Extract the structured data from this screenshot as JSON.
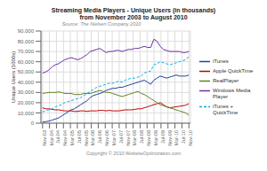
{
  "chart_data": {
    "type": "line",
    "title": "Streaming Media Players - Unique Users (in thousands)",
    "subtitle": "from November 2003 to August 2010",
    "annotations": [
      "Source: The Nielsen Company 2010",
      "Copyright © 2010 WebsiteOptimization.com"
    ],
    "y_label": "Unique Users (1000s)",
    "x": [
      0,
      1,
      2,
      3,
      4,
      5,
      6,
      7,
      8,
      9,
      10,
      11,
      12,
      13,
      14,
      15,
      16,
      17,
      18,
      19,
      20,
      21,
      22,
      23,
      24,
      25,
      26,
      27,
      28,
      29,
      30,
      31,
      32,
      33,
      34,
      35,
      36,
      37,
      38,
      39,
      40,
      41,
      42,
      43,
      44,
      45,
      46
    ],
    "xlim": [
      -0.5,
      46.5
    ],
    "xticks": [
      {
        "value": 0,
        "label": "Nov-03"
      },
      {
        "value": 2.1904761904761907,
        "label": "Mar-04"
      },
      {
        "value": 4.380952380952381,
        "label": "Jul-04"
      },
      {
        "value": 6.571428571428571,
        "label": "Nov-04"
      },
      {
        "value": 8.761904761904763,
        "label": "Mar-05"
      },
      {
        "value": 10.952380952380953,
        "label": "Jul-05"
      },
      {
        "value": 13.142857142857142,
        "label": "Nov-05"
      },
      {
        "value": 15.333333333333334,
        "label": "Mar-06"
      },
      {
        "value": 17.523809523809526,
        "label": "Jul-06"
      },
      {
        "value": 19.714285714285715,
        "label": "Nov-06"
      },
      {
        "value": 21.904761904761905,
        "label": "Mar-07"
      },
      {
        "value": 24.095238095238095,
        "label": "Jul-07"
      },
      {
        "value": 26.285714285714285,
        "label": "Nov-07"
      },
      {
        "value": 28.476190476190474,
        "label": "Mar-08"
      },
      {
        "value": 30.666666666666668,
        "label": "Jul-08"
      },
      {
        "value": 32.857142857142854,
        "label": "Nov-08"
      },
      {
        "value": 35.04761904761905,
        "label": "Mar-09"
      },
      {
        "value": 37.23809523809524,
        "label": "Jul-09"
      },
      {
        "value": 39.42857142857143,
        "label": "Nov-09"
      },
      {
        "value": 41.61904761904762,
        "label": "Mar-10"
      },
      {
        "value": 43.80952380952381,
        "label": "Jul-10"
      },
      {
        "value": 46,
        "label": "Nov-10"
      }
    ],
    "ylim": [
      0,
      90000
    ],
    "yticks": [
      0,
      {
        "value": 10000,
        "label": "10,000"
      },
      {
        "value": 20000,
        "label": "20,000"
      },
      {
        "value": 30000,
        "label": "30,000"
      },
      {
        "value": 40000,
        "label": "40,000"
      },
      {
        "value": 50000,
        "label": "50,000"
      },
      {
        "value": 60000,
        "label": "60,000"
      },
      {
        "value": 70000,
        "label": "70,000"
      },
      {
        "value": 80000,
        "label": "80,000"
      },
      {
        "value": 90000,
        "label": "90,000"
      }
    ],
    "grid": true,
    "legend": "right",
    "series": [
      {
        "name": "iTunes",
        "color": "#2040a0",
        "line_style": "solid",
        "values": [
          1000,
          1500,
          2000,
          3000,
          4000,
          5000,
          7000,
          9000,
          11000,
          13000,
          14000,
          16000,
          18000,
          20000,
          22000,
          25000,
          27000,
          28000,
          29000,
          30000,
          32000,
          33000,
          34000,
          34000,
          35000,
          35000,
          36000,
          37000,
          38000,
          39000,
          40000,
          41000,
          42000,
          40000,
          38000,
          42000,
          44000,
          46000,
          45000,
          44000,
          45000,
          46000,
          47000,
          46000,
          46000,
          46000,
          47000
        ]
      },
      {
        "name": "Apple QuickTime",
        "color": "#c00000",
        "line_style": "solid",
        "values": [
          15000,
          14000,
          14000,
          13500,
          13000,
          13000,
          12500,
          12000,
          12000,
          12000,
          11500,
          11500,
          12000,
          12000,
          11500,
          12000,
          12000,
          12000,
          12500,
          12500,
          12000,
          12500,
          12000,
          12000,
          12000,
          12500,
          13000,
          13000,
          13000,
          13500,
          14000,
          14000,
          15000,
          16000,
          17000,
          18000,
          19000,
          20000,
          18000,
          16000,
          15000,
          15500,
          16000,
          16500,
          17000,
          17500,
          19000
        ]
      },
      {
        "name": "RealPlayer",
        "color": "#608020",
        "line_style": "solid",
        "values": [
          29000,
          29500,
          30000,
          30000,
          30000,
          30500,
          30000,
          29000,
          29000,
          29000,
          28000,
          28000,
          28000,
          29000,
          29000,
          29000,
          30000,
          31000,
          32000,
          31000,
          30000,
          30000,
          29000,
          28000,
          27000,
          26000,
          27000,
          28000,
          29000,
          30000,
          31000,
          29000,
          28000,
          26000,
          24000,
          22000,
          20000,
          18000,
          17000,
          16000,
          15000,
          14000,
          13000,
          12000,
          11000,
          10000,
          8000
        ]
      },
      {
        "name": "Windows Media\nPlayer",
        "color": "#7030a0",
        "line_style": "solid",
        "values": [
          49000,
          50000,
          52000,
          55000,
          57000,
          58000,
          60000,
          62000,
          63000,
          64000,
          63000,
          62000,
          63000,
          65000,
          67000,
          70000,
          71000,
          72000,
          73000,
          71000,
          69000,
          70000,
          70000,
          71000,
          71000,
          70000,
          71000,
          72000,
          72000,
          73000,
          73000,
          74000,
          75000,
          74000,
          74000,
          82000,
          80000,
          75000,
          72000,
          71000,
          70000,
          70000,
          70000,
          70000,
          69000,
          69000,
          70000
        ]
      },
      {
        "name": "iTunes +\nQuickTime",
        "color": "#00b0e0",
        "line_style": "dashed",
        "values": [
          11000,
          12000,
          13000,
          14000,
          16000,
          17000,
          18000,
          20000,
          21000,
          22000,
          23000,
          24000,
          25000,
          27000,
          29000,
          31000,
          33000,
          35000,
          36000,
          37000,
          38000,
          39000,
          39000,
          40000,
          41000,
          40000,
          42000,
          43000,
          44000,
          44000,
          45000,
          46000,
          49000,
          50000,
          51000,
          57000,
          58000,
          60000,
          59000,
          58000,
          57000,
          58000,
          59000,
          60000,
          61000,
          62000,
          65000
        ]
      }
    ]
  }
}
